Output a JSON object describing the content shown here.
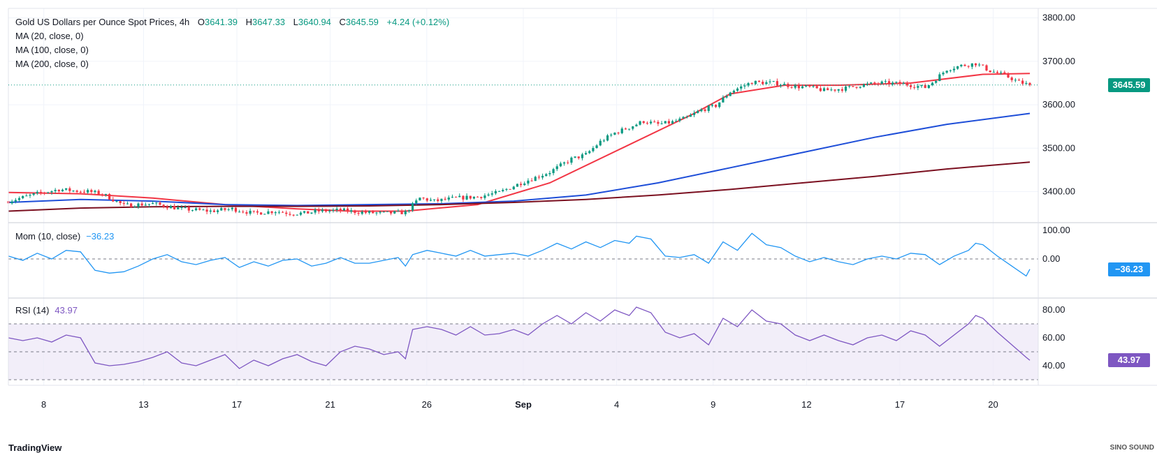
{
  "header": {
    "symbol": "Gold US Dollars per Ounce Spot Prices, 4h",
    "o_label": "O",
    "o_value": "3641.39",
    "h_label": "H",
    "h_value": "3647.33",
    "l_label": "L",
    "l_value": "3640.94",
    "c_label": "C",
    "c_value": "3645.59",
    "change": "+4.24 (+0.12%)",
    "ma20": "MA (20, close, 0)",
    "ma100": "MA (100, close, 0)",
    "ma200": "MA (200, close, 0)"
  },
  "momentum": {
    "label": "Mom (10, close)",
    "value": "−36.23"
  },
  "rsi": {
    "label": "RSI (14)",
    "value": "43.97"
  },
  "price_tags": {
    "last_price": "3645.59",
    "momentum": "−36.23",
    "rsi": "43.97"
  },
  "colors": {
    "up": "#089981",
    "down": "#f23645",
    "ma20": "#f23645",
    "ma100": "#1e4ed8",
    "ma200": "#7b1020",
    "momentum": "#2196f3",
    "rsi": "#7e57c2",
    "rsi_band": "#ede7f6",
    "grid": "#f0f3fa"
  },
  "branding": {
    "logo": "TradingView",
    "watermark": "SINO SOUND"
  },
  "chart_data": {
    "type": "candlestick",
    "title": "Gold US Dollars per Ounce Spot Prices, 4h",
    "x_ticks": [
      "8",
      "13",
      "17",
      "21",
      "26",
      "Sep",
      "4",
      "9",
      "12",
      "17",
      "20"
    ],
    "price_axis": {
      "ticks": [
        "3800.00",
        "3700.00",
        "3600.00",
        "3500.00",
        "3400.00"
      ],
      "ylim": [
        3330,
        3822
      ]
    },
    "momentum_axis": {
      "ticks": [
        "100.00",
        "0.00"
      ],
      "ylim": [
        -135,
        125
      ],
      "reference_line": 0
    },
    "rsi_axis": {
      "ticks": [
        "80.00",
        "60.00",
        "40.00"
      ],
      "ylim": [
        26,
        88
      ],
      "band": [
        30,
        70
      ],
      "midline": 50
    },
    "last_price": 3645.59,
    "ma_series": [
      {
        "name": "MA (20, close, 0)",
        "x": [
          0,
          20,
          40,
          60,
          80,
          95,
          110,
          130,
          150,
          170,
          190,
          200,
          215,
          230,
          250,
          270,
          283
        ],
        "y": [
          3398,
          3395,
          3385,
          3370,
          3360,
          3355,
          3355,
          3370,
          3420,
          3500,
          3580,
          3625,
          3645,
          3645,
          3650,
          3670,
          3672
        ]
      },
      {
        "name": "MA (100, close, 0)",
        "x": [
          0,
          20,
          40,
          60,
          80,
          100,
          120,
          140,
          160,
          180,
          200,
          220,
          240,
          260,
          283
        ],
        "y": [
          3375,
          3382,
          3378,
          3370,
          3368,
          3370,
          3372,
          3378,
          3392,
          3420,
          3455,
          3490,
          3525,
          3555,
          3580
        ]
      },
      {
        "name": "MA (200, close, 0)",
        "x": [
          0,
          20,
          40,
          60,
          80,
          100,
          120,
          140,
          160,
          180,
          200,
          220,
          240,
          260,
          283
        ],
        "y": [
          3355,
          3362,
          3365,
          3366,
          3366,
          3367,
          3370,
          3375,
          3382,
          3392,
          3405,
          3420,
          3435,
          3452,
          3468
        ]
      }
    ],
    "price_anchors": {
      "x": [
        0,
        8,
        14,
        18,
        22,
        26,
        32,
        40,
        48,
        56,
        62,
        68,
        74,
        78,
        82,
        86,
        92,
        98,
        104,
        110,
        114,
        118,
        124,
        130,
        136,
        142,
        150,
        156,
        160,
        164,
        168,
        172,
        176,
        180,
        184,
        188,
        192,
        196,
        200,
        206,
        212,
        218,
        222,
        226,
        232,
        236,
        242,
        248,
        254,
        256,
        260,
        264,
        268,
        272,
        276,
        280,
        283
      ],
      "y": [
        3378,
        3395,
        3405,
        3402,
        3400,
        3395,
        3368,
        3372,
        3360,
        3355,
        3360,
        3350,
        3355,
        3350,
        3350,
        3355,
        3357,
        3352,
        3350,
        3352,
        3385,
        3378,
        3385,
        3388,
        3398,
        3420,
        3445,
        3475,
        3485,
        3515,
        3535,
        3548,
        3562,
        3555,
        3560,
        3570,
        3588,
        3598,
        3630,
        3652,
        3650,
        3642,
        3640,
        3633,
        3638,
        3645,
        3650,
        3648,
        3640,
        3652,
        3682,
        3690,
        3695,
        3678,
        3668,
        3652,
        3645.59
      ]
    },
    "momentum_series": {
      "name": "Mom (10, close)",
      "x": [
        0,
        4,
        8,
        12,
        16,
        20,
        24,
        28,
        32,
        36,
        40,
        44,
        48,
        52,
        56,
        60,
        64,
        68,
        72,
        76,
        80,
        84,
        88,
        92,
        96,
        100,
        104,
        108,
        110,
        112,
        116,
        120,
        124,
        128,
        132,
        136,
        140,
        144,
        148,
        152,
        156,
        160,
        164,
        168,
        172,
        174,
        178,
        182,
        186,
        190,
        194,
        198,
        202,
        206,
        210,
        214,
        218,
        222,
        226,
        230,
        234,
        238,
        242,
        246,
        250,
        254,
        258,
        262,
        266,
        268,
        270,
        274,
        278,
        282,
        283
      ],
      "y": [
        10,
        -5,
        20,
        0,
        30,
        25,
        -40,
        -50,
        -45,
        -25,
        0,
        15,
        -10,
        -20,
        -5,
        5,
        -30,
        -10,
        -25,
        -5,
        0,
        -25,
        -15,
        5,
        -15,
        -15,
        -5,
        5,
        -25,
        15,
        30,
        20,
        10,
        30,
        10,
        15,
        20,
        10,
        30,
        55,
        35,
        60,
        40,
        65,
        55,
        80,
        70,
        10,
        5,
        15,
        -15,
        60,
        30,
        90,
        50,
        40,
        10,
        -10,
        5,
        -10,
        -20,
        0,
        10,
        0,
        20,
        15,
        -20,
        10,
        30,
        55,
        50,
        10,
        -25,
        -60,
        -36.23
      ]
    },
    "rsi_series": {
      "name": "RSI (14)",
      "x": [
        0,
        4,
        8,
        12,
        16,
        20,
        24,
        28,
        32,
        36,
        40,
        44,
        48,
        52,
        56,
        60,
        64,
        68,
        72,
        76,
        80,
        84,
        88,
        92,
        96,
        100,
        104,
        108,
        110,
        112,
        116,
        120,
        124,
        128,
        132,
        136,
        140,
        144,
        148,
        152,
        156,
        160,
        164,
        168,
        172,
        174,
        178,
        182,
        186,
        190,
        194,
        198,
        202,
        206,
        210,
        214,
        218,
        222,
        226,
        230,
        234,
        238,
        242,
        246,
        250,
        254,
        258,
        262,
        266,
        268,
        270,
        274,
        278,
        282,
        283
      ],
      "y": [
        60,
        58,
        60,
        57,
        62,
        60,
        42,
        40,
        41,
        43,
        46,
        50,
        42,
        40,
        44,
        48,
        38,
        44,
        40,
        45,
        48,
        43,
        40,
        50,
        54,
        52,
        48,
        50,
        45,
        66,
        68,
        66,
        62,
        68,
        62,
        63,
        66,
        62,
        70,
        76,
        70,
        78,
        72,
        80,
        76,
        82,
        78,
        64,
        60,
        63,
        55,
        74,
        68,
        80,
        72,
        70,
        62,
        58,
        62,
        58,
        55,
        60,
        62,
        58,
        65,
        62,
        54,
        62,
        70,
        76,
        74,
        64,
        55,
        46,
        43.97
      ]
    }
  }
}
